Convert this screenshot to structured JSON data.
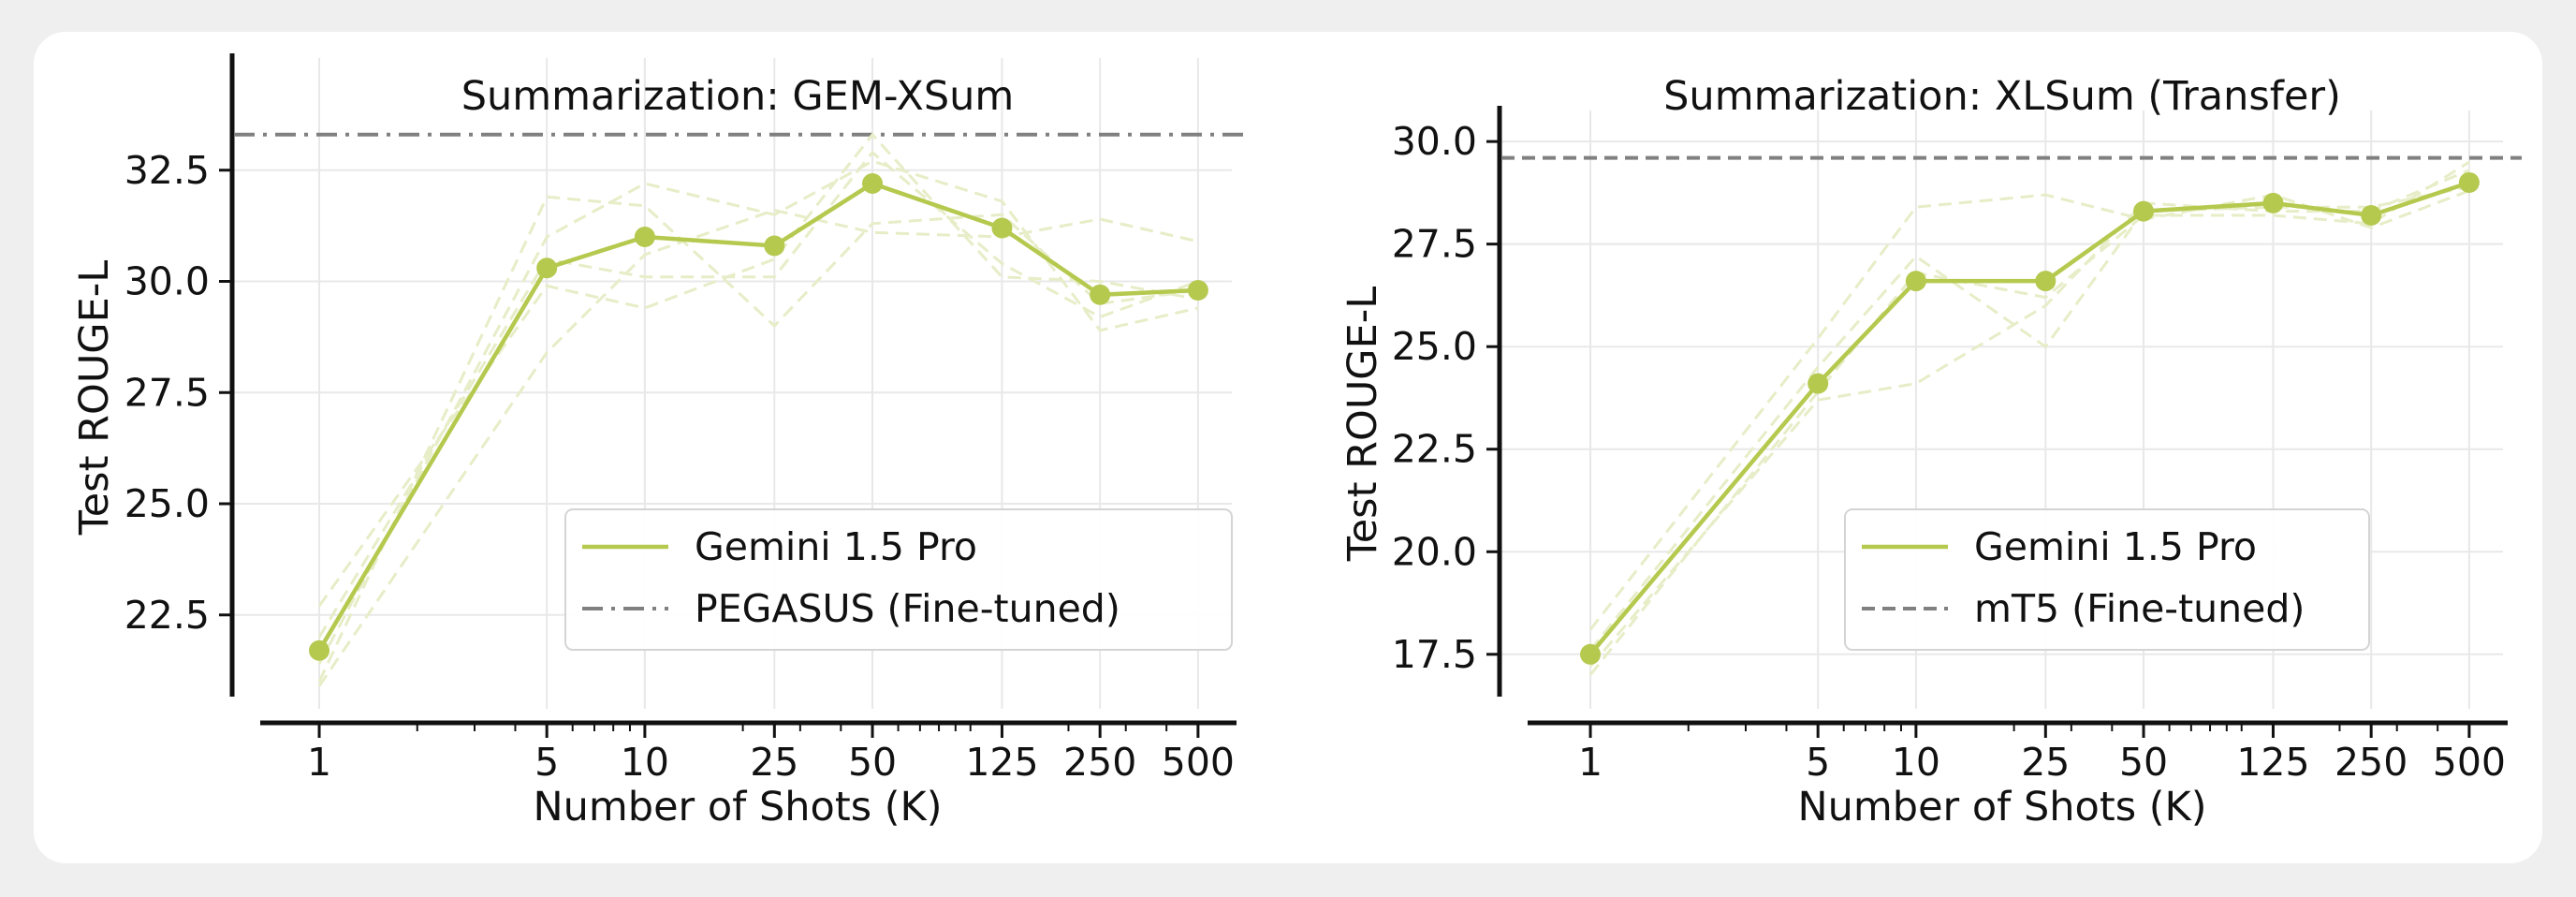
{
  "chart_data": [
    {
      "type": "line",
      "title": "Summarization: GEM-XSum",
      "xlabel": "Number of Shots (K)",
      "ylabel": "Test ROUGE-L",
      "x_scale": "log",
      "x": [
        1,
        5,
        10,
        25,
        50,
        125,
        250,
        500
      ],
      "xtick_labels": [
        "1",
        "5",
        "10",
        "25",
        "50",
        "125",
        "250",
        "500"
      ],
      "ylim": [
        20.6,
        34.6
      ],
      "yticks": [
        22.5,
        25.0,
        27.5,
        30.0,
        32.5
      ],
      "ytick_labels": [
        "22.5",
        "25.0",
        "27.5",
        "30.0",
        "32.5"
      ],
      "grid": true,
      "legend_position": "lower-right",
      "series": [
        {
          "name": "Gemini 1.5 Pro",
          "color": "#b5c94f",
          "style": "solid-markers",
          "values": [
            21.7,
            30.3,
            31.0,
            30.8,
            32.2,
            31.2,
            29.7,
            29.8
          ]
        }
      ],
      "faint_runs": {
        "color": "#e6edc7",
        "runs": [
          [
            21.0,
            31.9,
            31.7,
            29.0,
            31.3,
            31.5,
            29.5,
            29.8
          ],
          [
            22.7,
            29.9,
            29.4,
            30.5,
            33.3,
            30.1,
            30.0,
            29.6
          ],
          [
            20.9,
            28.4,
            30.6,
            31.6,
            31.1,
            31.0,
            31.4,
            30.9
          ],
          [
            21.4,
            31.0,
            32.2,
            31.5,
            32.7,
            31.8,
            28.9,
            29.4
          ],
          [
            22.0,
            30.5,
            30.1,
            30.1,
            32.9,
            30.4,
            29.2,
            30.0
          ]
        ]
      },
      "reference": {
        "name": "PEGASUS (Fine-tuned)",
        "value": 33.3,
        "color": "#808080",
        "style": "dash-dot"
      }
    },
    {
      "type": "line",
      "title": "Summarization: XLSum (Transfer)",
      "xlabel": "Number of Shots (K)",
      "ylabel": "Test ROUGE-L",
      "x_scale": "log",
      "x": [
        1,
        5,
        10,
        25,
        50,
        125,
        250,
        500
      ],
      "xtick_labels": [
        "1",
        "5",
        "10",
        "25",
        "50",
        "125",
        "250",
        "500"
      ],
      "ylim": [
        16.4,
        30.3
      ],
      "yticks": [
        17.5,
        20.0,
        22.5,
        25.0,
        27.5,
        30.0
      ],
      "ytick_labels": [
        "17.5",
        "20.0",
        "22.5",
        "25.0",
        "27.5",
        "30.0"
      ],
      "grid": true,
      "legend_position": "lower-right",
      "series": [
        {
          "name": "Gemini 1.5 Pro",
          "color": "#b5c94f",
          "style": "solid-markers",
          "values": [
            17.5,
            24.1,
            26.6,
            26.6,
            28.3,
            28.5,
            28.2,
            29.0
          ]
        }
      ],
      "faint_runs": {
        "color": "#e6edc7",
        "runs": [
          [
            17.2,
            23.7,
            24.1,
            26.0,
            28.5,
            28.3,
            28.3,
            29.3
          ],
          [
            18.1,
            25.2,
            28.4,
            28.7,
            28.1,
            28.7,
            27.9,
            28.8
          ],
          [
            17.6,
            24.5,
            27.2,
            25.0,
            28.3,
            28.4,
            28.4,
            28.9
          ],
          [
            17.0,
            23.9,
            26.8,
            26.2,
            28.2,
            28.2,
            28.0,
            29.5
          ]
        ]
      },
      "reference": {
        "name": "mT5 (Fine-tuned)",
        "value": 29.6,
        "color": "#808080",
        "style": "dashed"
      }
    }
  ]
}
